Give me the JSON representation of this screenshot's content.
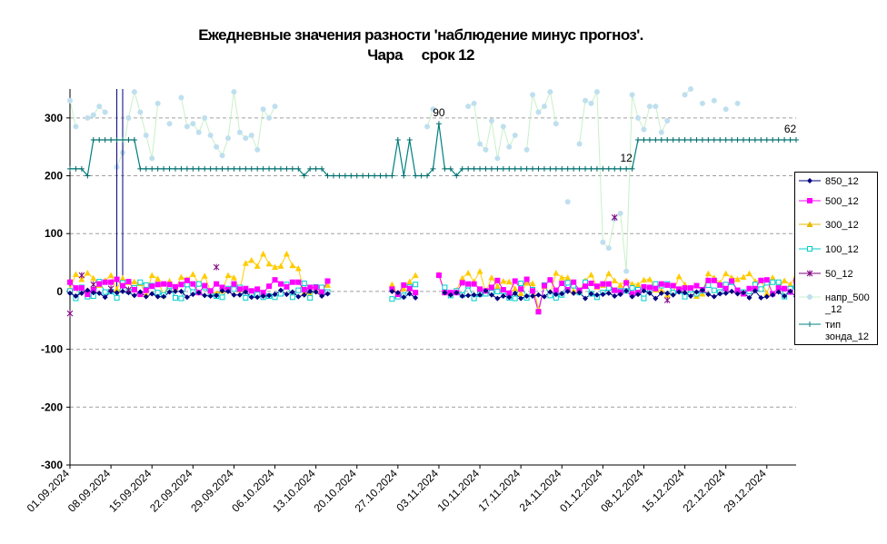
{
  "title_line1": "Ежедневные значения разности 'наблюдение минус прогноз'.",
  "title_line2": "Чара     срок 12",
  "chart_data": {
    "type": "line",
    "title": "Ежедневные значения разности 'наблюдение минус прогноз'. Чара срок 12",
    "ylim": [
      -300,
      350
    ],
    "y_ticks": [
      300,
      200,
      100,
      0,
      -100,
      -200,
      -300
    ],
    "x_ticks": [
      "01.09.2024",
      "08.09.2024",
      "15.09.2024",
      "22.09.2024",
      "29.09.2024",
      "06.10.2024",
      "13.10.2024",
      "20.10.2024",
      "27.10.2024",
      "03.11.2024",
      "10.11.2024",
      "17.11.2024",
      "24.11.2024",
      "01.12.2024",
      "08.12.2024",
      "15.12.2024",
      "22.12.2024",
      "29.12.2024"
    ],
    "x_range": [
      "01.09.2024",
      "03.01.2025"
    ],
    "grid": "horizontal dashed",
    "legend_position": "right",
    "annotations": [
      {
        "x": "23.10.2024",
        "y": 290,
        "text": "90"
      },
      {
        "x": "05.12.2024",
        "y": 212,
        "text": "12"
      },
      {
        "x": "30.12.2024",
        "y": 262,
        "text": "62"
      }
    ],
    "series": [
      {
        "name": "850_12",
        "color": "#000080",
        "marker": "diamond",
        "line": "#000080",
        "values": [
          -2,
          -8,
          null,
          2,
          -5,
          -10,
          -6,
          -2,
          -7,
          -4,
          -8,
          -3,
          -2,
          -12,
          -5,
          -2,
          -6,
          -3,
          2,
          -4,
          -8,
          -6,
          -9,
          -5,
          -7,
          -3,
          -2,
          2,
          -1,
          -6,
          -4,
          -8,
          -5,
          -2,
          -9,
          -3,
          -6,
          -2,
          3,
          -3,
          -5,
          -10,
          -8,
          -5,
          -12,
          null,
          null,
          null,
          null,
          null,
          null,
          null,
          null,
          null,
          null,
          null,
          null,
          null,
          null,
          null,
          null,
          null,
          null,
          null,
          null,
          null,
          null,
          null,
          null,
          null,
          null,
          null,
          null,
          null,
          null,
          null,
          null,
          null,
          null,
          null,
          null,
          null,
          null,
          null,
          null,
          null,
          null,
          null,
          null,
          null,
          null,
          null,
          null,
          null,
          null,
          null,
          null,
          null,
          null,
          null,
          null,
          null,
          null,
          null,
          null,
          null,
          null,
          null,
          null,
          null,
          null,
          null,
          null,
          null,
          null,
          null,
          null,
          null,
          null,
          null,
          null,
          null,
          null,
          null,
          null,
          null
        ]
      },
      {
        "name": "500_12",
        "color": "#FF00FF",
        "marker": "square",
        "line": "#FF00FF",
        "values": []
      },
      {
        "name": "300_12",
        "color": "#FFCC00",
        "marker": "triangle",
        "line": "#FFCC00",
        "values": []
      },
      {
        "name": "100_12",
        "color": "#00CCCC",
        "marker": "open-square",
        "line": "#00CCCC",
        "values": []
      },
      {
        "name": "50_12",
        "color": "#800080",
        "marker": "asterisk",
        "line": "#800080",
        "values": []
      },
      {
        "name": "напр_500_12",
        "color": "#BFDFEF",
        "marker": "circle",
        "line": "#C8F0C8",
        "values": []
      },
      {
        "name": "тип зонда_12",
        "color": "#006B6B",
        "marker": "plus",
        "line": "#008080",
        "values": []
      }
    ]
  },
  "legend": [
    {
      "label": "850_12",
      "color": "#000080",
      "marker": "diamond"
    },
    {
      "label": "500_12",
      "color": "#FF00FF",
      "marker": "square"
    },
    {
      "label": "300_12",
      "color": "#E6B800",
      "marker": "triangle"
    },
    {
      "label": "100_12",
      "color": "#00CCCC",
      "marker": "open-square"
    },
    {
      "label": "50_12",
      "color": "#800080",
      "marker": "asterisk"
    },
    {
      "label": "напр_500\n_12",
      "color": "#BFDFEF",
      "marker": "circle"
    },
    {
      "label": "тип\nзонда_12",
      "color": "#008080",
      "marker": "plus"
    }
  ]
}
